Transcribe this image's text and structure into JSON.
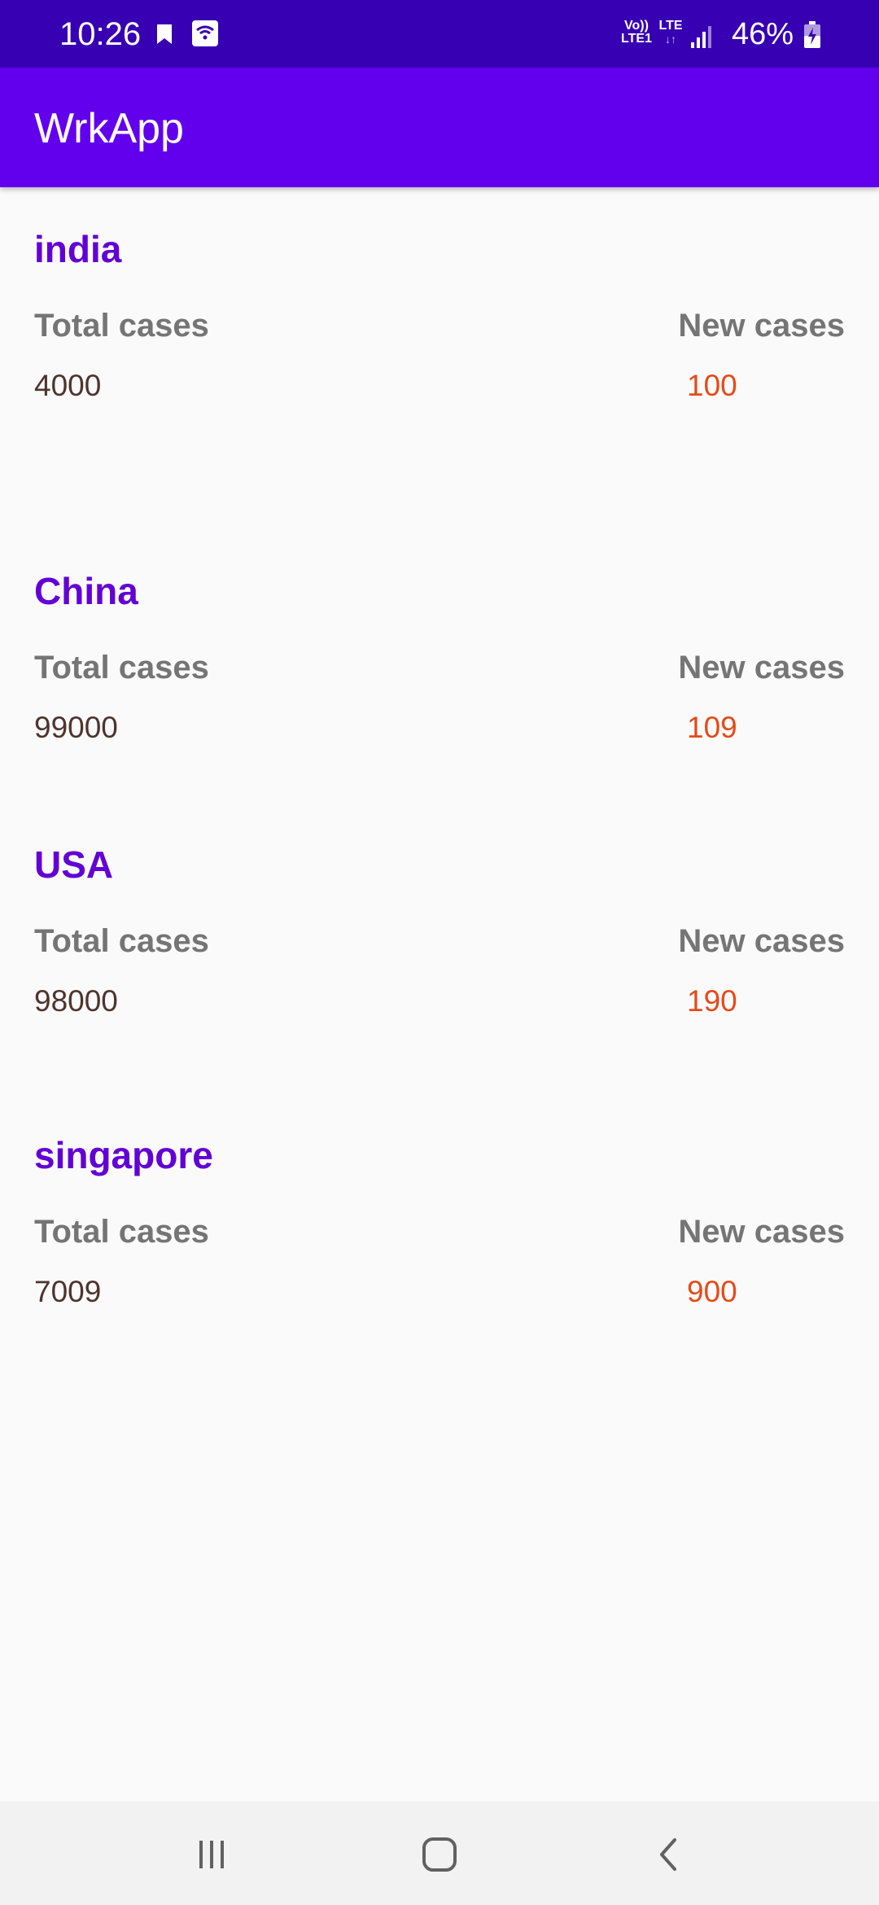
{
  "status_bar": {
    "time": "10:26",
    "left_icons": [
      "bookmark-icon",
      "wifi-calling-icon"
    ],
    "net_top": "Vo))",
    "net_bottom": "LTE1",
    "lte_label": "LTE",
    "signal_icon": "signal-icon",
    "battery_percent": "46%",
    "battery_icon": "battery-charging-icon",
    "background_color": "#3700b3"
  },
  "app_bar": {
    "title": "WrkApp",
    "background_color": "#6200ee"
  },
  "countries": [
    {
      "name": "india",
      "total_label": "Total cases",
      "new_label": "New cases",
      "total": "4000",
      "new": "100"
    },
    {
      "name": "China",
      "total_label": "Total cases",
      "new_label": "New cases",
      "total": "99000",
      "new": "109"
    },
    {
      "name": "USA",
      "total_label": "Total cases",
      "new_label": "New cases",
      "total": "98000",
      "new": "190"
    },
    {
      "name": "singapore",
      "total_label": "Total cases",
      "new_label": "New cases",
      "total": "7009",
      "new": "900"
    }
  ],
  "colors": {
    "country_name": "#6200d5",
    "label": "#757575",
    "total_value": "#4e342e",
    "new_value": "#e64a19"
  },
  "nav_bar": {
    "buttons": [
      "recent-apps-icon",
      "home-icon",
      "back-icon"
    ]
  }
}
